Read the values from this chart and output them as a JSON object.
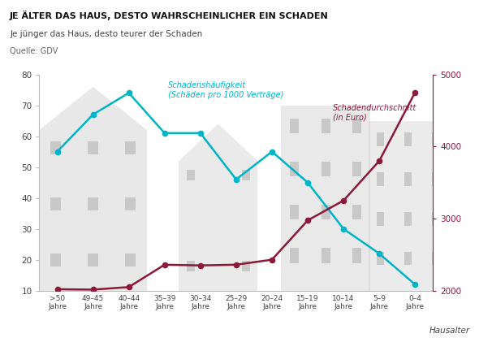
{
  "categories": [
    ">50\nJahre",
    "49–45\nJahre",
    "40–44\nJahre",
    "35–39\nJahre",
    "30–34\nJahre",
    "25–29\nJahre",
    "20–24\nJahre",
    "15–19\nJahre",
    "10–14\nJahre",
    "5–9\nJahre",
    "0–4\nJahre"
  ],
  "haeufigkeit": [
    55,
    67,
    74,
    61,
    61,
    46,
    55,
    45,
    30,
    22,
    12
  ],
  "durchschnitt": [
    2020,
    2015,
    2050,
    2360,
    2350,
    2360,
    2430,
    2975,
    3250,
    3800,
    4750
  ],
  "title": "JE ÄLTER DAS HAUS, DESTO WAHRSCHEINLICHER EIN SCHADEN",
  "subtitle": "Je jünger das Haus, desto teurer der Schaden",
  "source": "Quelle: GDV",
  "label_haeufigkeit": "Schadenshäufigkeit\n(Schäden pro 1000 Verträge)",
  "label_durchschnitt": "Schadendurchschnitt\n(in Euro)",
  "xlabel": "Hausalter",
  "color_haeufigkeit": "#00b4c8",
  "color_durchschnitt": "#8b1a3a",
  "ylim_left": [
    10,
    80
  ],
  "ylim_right": [
    2000,
    5000
  ],
  "yticks_left": [
    10,
    20,
    30,
    40,
    50,
    60,
    70,
    80
  ],
  "yticks_right": [
    2000,
    3000,
    4000,
    5000
  ],
  "bg_color": "#ffffff",
  "building_color": "#cccccc",
  "window_color": "#bbbbbb"
}
